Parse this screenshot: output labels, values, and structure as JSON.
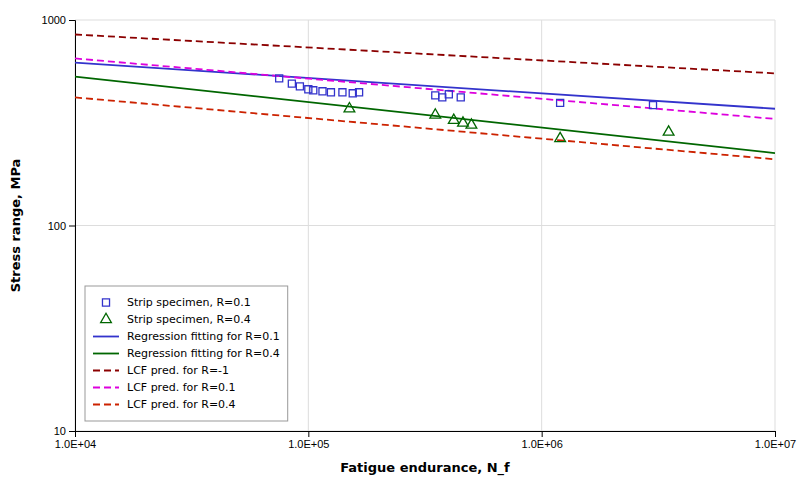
{
  "chart_data": {
    "type": "scatter",
    "title": "",
    "xlabel": "Fatigue endurance, N_f",
    "ylabel": "Stress range, MPa",
    "log": true,
    "grid": true,
    "legend": "lower left",
    "xlim": [
      10000,
      10000000
    ],
    "ylim": [
      10,
      1000
    ],
    "xticks": [
      {
        "value": 10000,
        "label": "1.0E+04"
      },
      {
        "value": 100000,
        "label": "1.0E+05"
      },
      {
        "value": 1000000,
        "label": "1.0E+06"
      },
      {
        "value": 10000000,
        "label": "1.0E+07"
      }
    ],
    "yticks": [
      10,
      100,
      1000
    ],
    "series": [
      {
        "name": "Strip specimen, R=0.1",
        "type": "scatter",
        "marker": "square",
        "color": "#3333cc",
        "x": [
          75000,
          85000,
          92000,
          100000,
          105000,
          115000,
          125000,
          140000,
          155000,
          165000,
          350000,
          375000,
          400000,
          450000,
          1200000,
          3000000
        ],
        "values": [
          520,
          490,
          475,
          460,
          455,
          450,
          445,
          445,
          440,
          445,
          430,
          420,
          435,
          420,
          395,
          385
        ]
      },
      {
        "name": "Strip specimen, R=0.4",
        "type": "scatter",
        "marker": "triangle",
        "color": "#006600",
        "x": [
          150000,
          350000,
          420000,
          460000,
          500000,
          1200000,
          3500000
        ],
        "values": [
          370,
          345,
          325,
          315,
          308,
          265,
          285
        ]
      },
      {
        "name": "Regression fitting for R=0.1",
        "type": "line",
        "line_style": "solid",
        "color": "#3333cc",
        "x": [
          10000,
          10000000
        ],
        "values": [
          620,
          370
        ]
      },
      {
        "name": "Regression fitting for R=0.4",
        "type": "line",
        "line_style": "solid",
        "color": "#006600",
        "x": [
          10000,
          10000000
        ],
        "values": [
          530,
          225
        ]
      },
      {
        "name": "LCF pred. for R=-1",
        "type": "line",
        "line_style": "dashed",
        "color": "#8B0000",
        "x": [
          10000,
          10000000
        ],
        "values": [
          850,
          550
        ]
      },
      {
        "name": "LCF pred. for R=0.1",
        "type": "line",
        "line_style": "dashed",
        "color": "#dd00dd",
        "x": [
          10000,
          10000000
        ],
        "values": [
          650,
          330
        ]
      },
      {
        "name": "LCF pred. for R=0.4",
        "type": "line",
        "line_style": "dashed",
        "color": "#cc2200",
        "x": [
          10000,
          10000000
        ],
        "values": [
          420,
          210
        ]
      }
    ]
  }
}
